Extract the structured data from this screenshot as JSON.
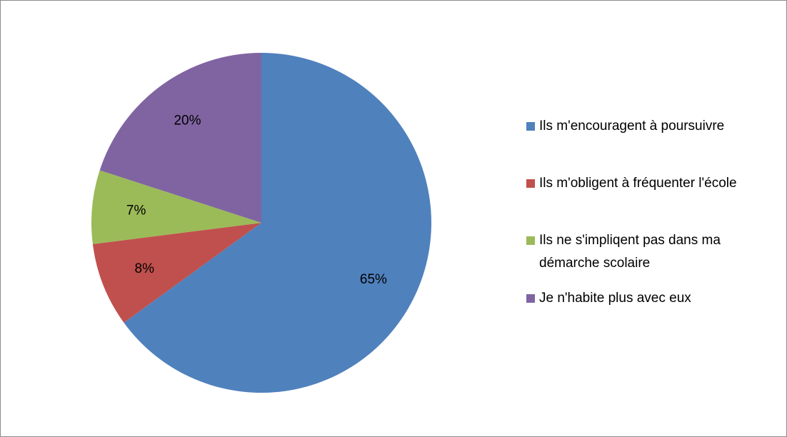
{
  "chart_data": {
    "type": "pie",
    "categories": [
      "Ils m'encouragent à poursuivre",
      "Ils m'obligent à fréquenter l'école",
      "Ils ne s'impliqent pas dans ma démarche scolaire",
      "Je n'habite plus avec eux"
    ],
    "values": [
      65,
      8,
      7,
      20
    ],
    "value_labels": [
      "65%",
      "8%",
      "7%",
      "20%"
    ],
    "colors": [
      "#4f81bd",
      "#c0504d",
      "#9bbb59",
      "#8064a2"
    ],
    "legend": "right"
  }
}
